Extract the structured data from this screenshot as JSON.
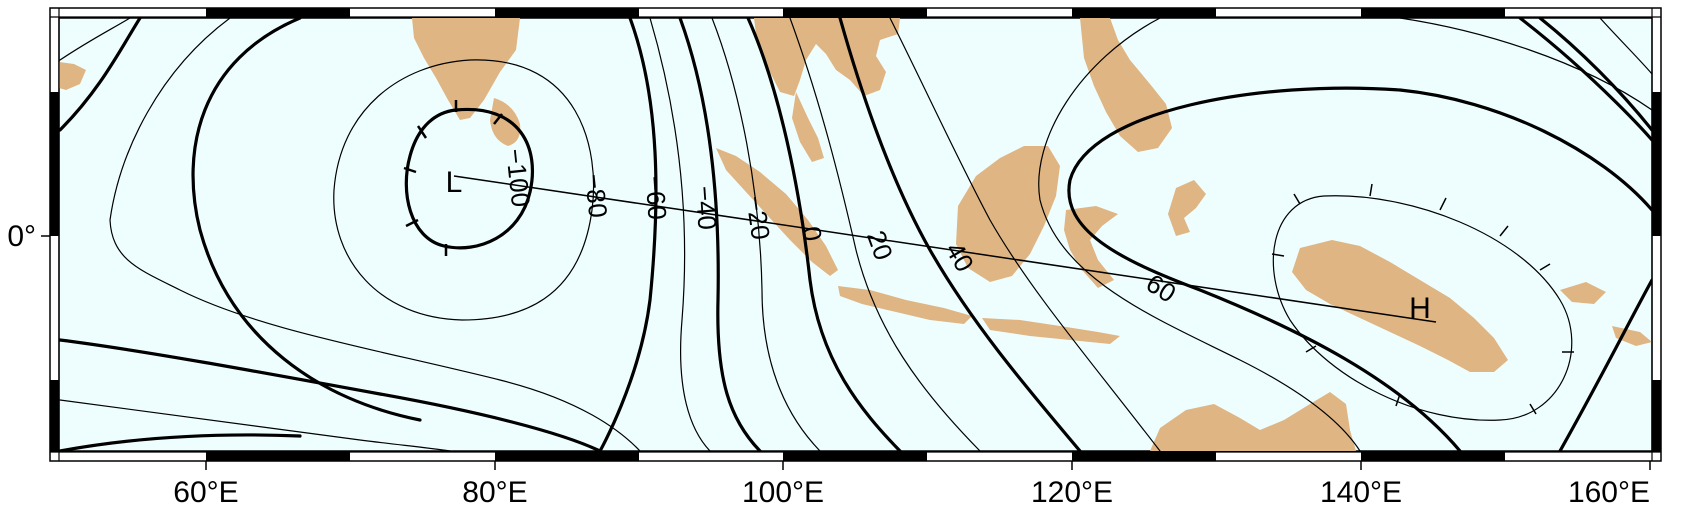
{
  "map": {
    "projection": "cylindrical",
    "longitude_range_deg": [
      48,
      162
    ],
    "x_axis_labels": [
      "60°E",
      "80°E",
      "100°E",
      "120°E",
      "140°E",
      "160°E"
    ],
    "y_axis_labels": [
      "0°"
    ],
    "ocean_color": "#eefefe",
    "land_color": "#dfb583",
    "frame": "black-and-white checkered border"
  },
  "contours": {
    "labels": [
      "−100",
      "−80",
      "−60",
      "−40",
      "−20",
      "0",
      "20",
      "40",
      "60"
    ],
    "line_color": "#000000"
  },
  "extrema": {
    "low_label": "L",
    "high_label": "H"
  }
}
